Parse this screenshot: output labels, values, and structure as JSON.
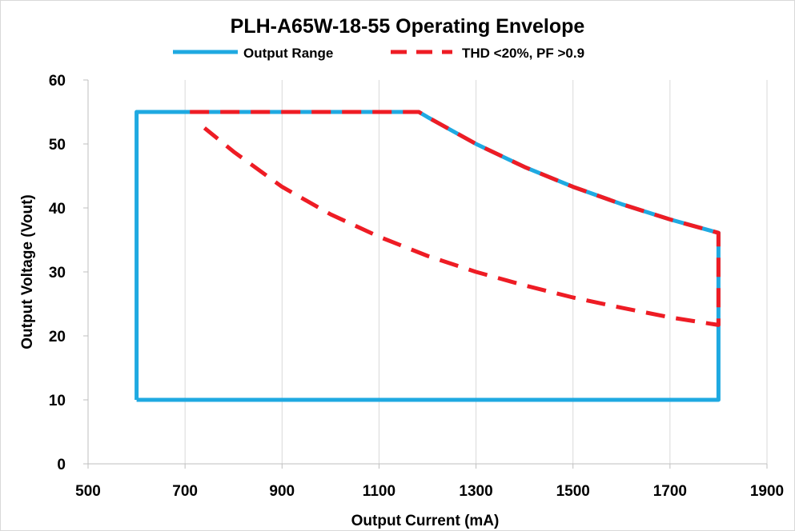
{
  "chart_data": {
    "type": "line",
    "title": "PLH-A65W-18-55 Operating Envelope",
    "xlabel": "Output Current (mA)",
    "ylabel": "Output Voltage (Vout)",
    "xlim": [
      500,
      1900
    ],
    "ylim": [
      0,
      60
    ],
    "xticks": [
      "500",
      "700",
      "900",
      "1100",
      "1300",
      "1500",
      "1700",
      "1900"
    ],
    "yticks": [
      "0",
      "10",
      "20",
      "30",
      "40",
      "50",
      "60"
    ],
    "grid": {
      "vertical": true,
      "horizontal": false
    },
    "legend_position": "top",
    "series": [
      {
        "name": "Output Range",
        "color": "#1fa9e1",
        "style": "solid",
        "x": [
          600,
          600,
          1182,
          1200,
          1300,
          1400,
          1500,
          1600,
          1700,
          1800,
          1800,
          600
        ],
        "y": [
          10,
          55,
          55,
          54.2,
          50,
          46.4,
          43.3,
          40.6,
          38.2,
          36.1,
          10,
          10
        ]
      },
      {
        "name": "THD <20%, PF >0.9",
        "color": "#ee1c24",
        "style": "dashed",
        "x": [
          710,
          1182,
          1200,
          1300,
          1400,
          1500,
          1600,
          1700,
          1800,
          1800,
          1700,
          1600,
          1500,
          1400,
          1300,
          1200,
          1100,
          1000,
          900,
          800,
          740
        ],
        "y": [
          55,
          55,
          54.2,
          50,
          46.4,
          43.3,
          40.6,
          38.2,
          36.1,
          21.7,
          22.9,
          24.4,
          26,
          27.9,
          30,
          32.5,
          35.5,
          39,
          43.3,
          48.8,
          52.5
        ]
      }
    ]
  }
}
